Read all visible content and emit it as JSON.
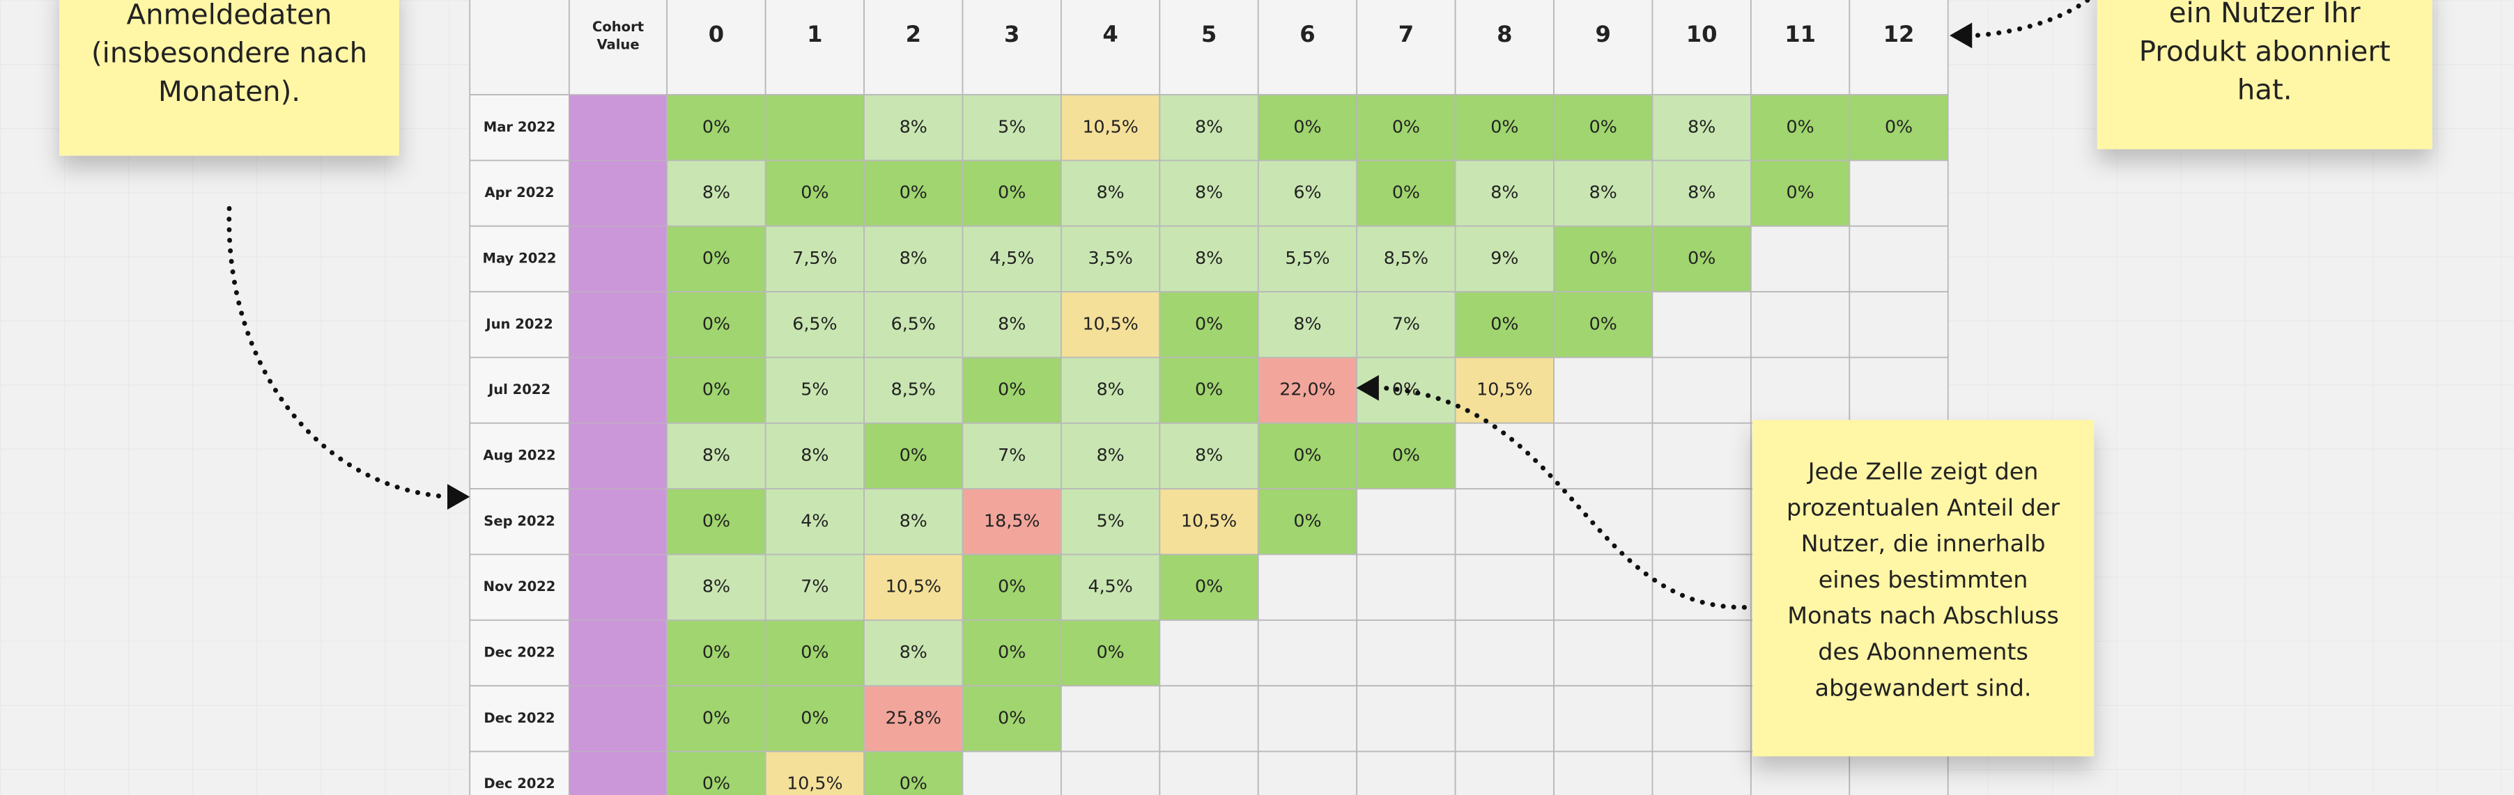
{
  "table": {
    "header": {
      "cohort_value": [
        "Cohort",
        "Value"
      ],
      "columns": [
        0,
        1,
        2,
        3,
        4,
        5,
        6,
        7,
        8,
        9,
        10,
        11,
        12
      ]
    },
    "rows": [
      {
        "label": "Mar 2022",
        "cells": [
          "0%",
          null,
          "8%",
          "5%",
          "10,5%",
          "8%",
          "0%",
          "0%",
          "0%",
          "0%",
          "8%",
          "0%",
          "0%"
        ],
        "colors": [
          "#a0d56f",
          "#a0d56f",
          "#c9e6b2",
          "#c9e6b2",
          "#f5e09a",
          "#c9e6b2",
          "#a0d56f",
          "#a0d56f",
          "#a0d56f",
          "#a0d56f",
          "#c9e6b2",
          "#a0d56f",
          "#a0d56f"
        ]
      },
      {
        "label": "Apr 2022",
        "cells": [
          "8%",
          "0%",
          "0%",
          "0%",
          "8%",
          "8%",
          "6%",
          "0%",
          "8%",
          "8%",
          "8%",
          "0%"
        ],
        "colors": [
          "#c9e6b2",
          "#a0d56f",
          "#a0d56f",
          "#a0d56f",
          "#c9e6b2",
          "#c9e6b2",
          "#c9e6b2",
          "#a0d56f",
          "#c9e6b2",
          "#c9e6b2",
          "#c9e6b2",
          "#a0d56f"
        ]
      },
      {
        "label": "May 2022",
        "cells": [
          "0%",
          "7,5%",
          "8%",
          "4,5%",
          "3,5%",
          "8%",
          "5,5%",
          "8,5%",
          "9%",
          "0%",
          "0%"
        ],
        "colors": [
          "#a0d56f",
          "#c9e6b2",
          "#c9e6b2",
          "#c9e6b2",
          "#c9e6b2",
          "#c9e6b2",
          "#c9e6b2",
          "#c9e6b2",
          "#c9e6b2",
          "#a0d56f",
          "#a0d56f"
        ]
      },
      {
        "label": "Jun 2022",
        "cells": [
          "0%",
          "6,5%",
          "6,5%",
          "8%",
          "10,5%",
          "0%",
          "8%",
          "7%",
          "0%",
          "0%"
        ],
        "colors": [
          "#a0d56f",
          "#c9e6b2",
          "#c9e6b2",
          "#c9e6b2",
          "#f5e09a",
          "#a0d56f",
          "#c9e6b2",
          "#c9e6b2",
          "#a0d56f",
          "#a0d56f"
        ]
      },
      {
        "label": "Jul 2022",
        "cells": [
          "0%",
          "5%",
          "8,5%",
          "0%",
          "8%",
          "0%",
          "22,0%",
          "0%",
          "10,5%"
        ],
        "colors": [
          "#a0d56f",
          "#c9e6b2",
          "#c9e6b2",
          "#a0d56f",
          "#c9e6b2",
          "#a0d56f",
          "#f2a69b",
          "#c9e6b2",
          "#f5e09a"
        ]
      },
      {
        "label": "Aug 2022",
        "cells": [
          "8%",
          "8%",
          "0%",
          "7%",
          "8%",
          "8%",
          "0%",
          "0%"
        ],
        "colors": [
          "#c9e6b2",
          "#c9e6b2",
          "#a0d56f",
          "#c9e6b2",
          "#c9e6b2",
          "#c9e6b2",
          "#a0d56f",
          "#a0d56f"
        ]
      },
      {
        "label": "Sep 2022",
        "cells": [
          "0%",
          "4%",
          "8%",
          "18,5%",
          "5%",
          "10,5%",
          "0%"
        ],
        "colors": [
          "#a0d56f",
          "#c9e6b2",
          "#c9e6b2",
          "#f2a69b",
          "#c9e6b2",
          "#f5e09a",
          "#a0d56f"
        ]
      },
      {
        "label": "Nov 2022",
        "cells": [
          "8%",
          "7%",
          "10,5%",
          "0%",
          "4,5%",
          "0%"
        ],
        "colors": [
          "#c9e6b2",
          "#c9e6b2",
          "#f5e09a",
          "#a0d56f",
          "#c9e6b2",
          "#a0d56f"
        ]
      },
      {
        "label": "Dec 2022",
        "cells": [
          "0%",
          "0%",
          "8%",
          "0%",
          "0%"
        ],
        "colors": [
          "#a0d56f",
          "#a0d56f",
          "#c9e6b2",
          "#a0d56f",
          "#a0d56f"
        ]
      },
      {
        "label": "Dec 2022",
        "cells": [
          "0%",
          "0%",
          "25,8%",
          "0%"
        ],
        "colors": [
          "#a0d56f",
          "#a0d56f",
          "#f2a69b",
          "#a0d56f"
        ]
      },
      {
        "label": "Dec 2022",
        "cells": [
          "0%",
          "10,5%",
          "0%"
        ],
        "colors": [
          "#a0d56f",
          "#f5e09a",
          "#a0d56f"
        ]
      }
    ]
  },
  "notes": [
    {
      "lines": [
        "Anmeldedaten",
        "(insbesondere nach",
        "Monaten)."
      ]
    },
    {
      "lines": [
        "ein Nutzer Ihr",
        "Produkt abonniert",
        "hat."
      ]
    },
    {
      "lines": [
        "Jede Zelle zeigt den",
        "prozentualen Anteil der",
        "Nutzer, die innerhalb",
        "eines bestimmten",
        "Monats nach Abschluss",
        "des Abonnements",
        "abgewandert sind."
      ]
    }
  ]
}
